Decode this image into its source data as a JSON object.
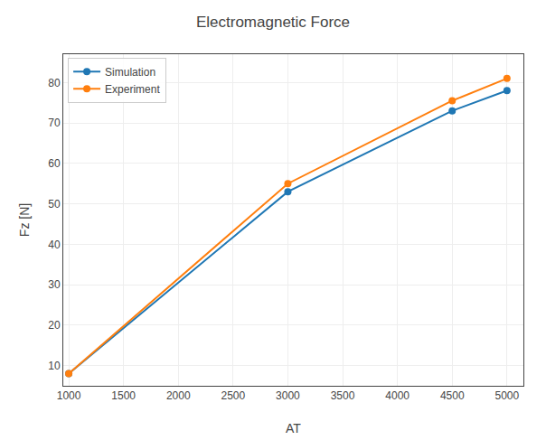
{
  "chart_data": {
    "type": "line",
    "title": "Electromagnetic Force",
    "xlabel": "AT",
    "ylabel": "Fz [N]",
    "x": [
      1000,
      3000,
      4500,
      5000
    ],
    "series": [
      {
        "name": "Simulation",
        "color": "#1f77b4",
        "marker": "circle",
        "values": [
          8,
          53,
          73,
          78
        ]
      },
      {
        "name": "Experiment",
        "color": "#ff7f0e",
        "marker": "circle",
        "values": [
          8,
          55,
          75.5,
          81
        ]
      }
    ],
    "xlim": [
      950,
      5150
    ],
    "ylim": [
      5,
      87
    ],
    "xticks": [
      1000,
      1500,
      2000,
      2500,
      3000,
      3500,
      4000,
      4500,
      5000
    ],
    "yticks": [
      10,
      20,
      30,
      40,
      50,
      60,
      70,
      80
    ],
    "grid": true,
    "legend": "upper left"
  }
}
